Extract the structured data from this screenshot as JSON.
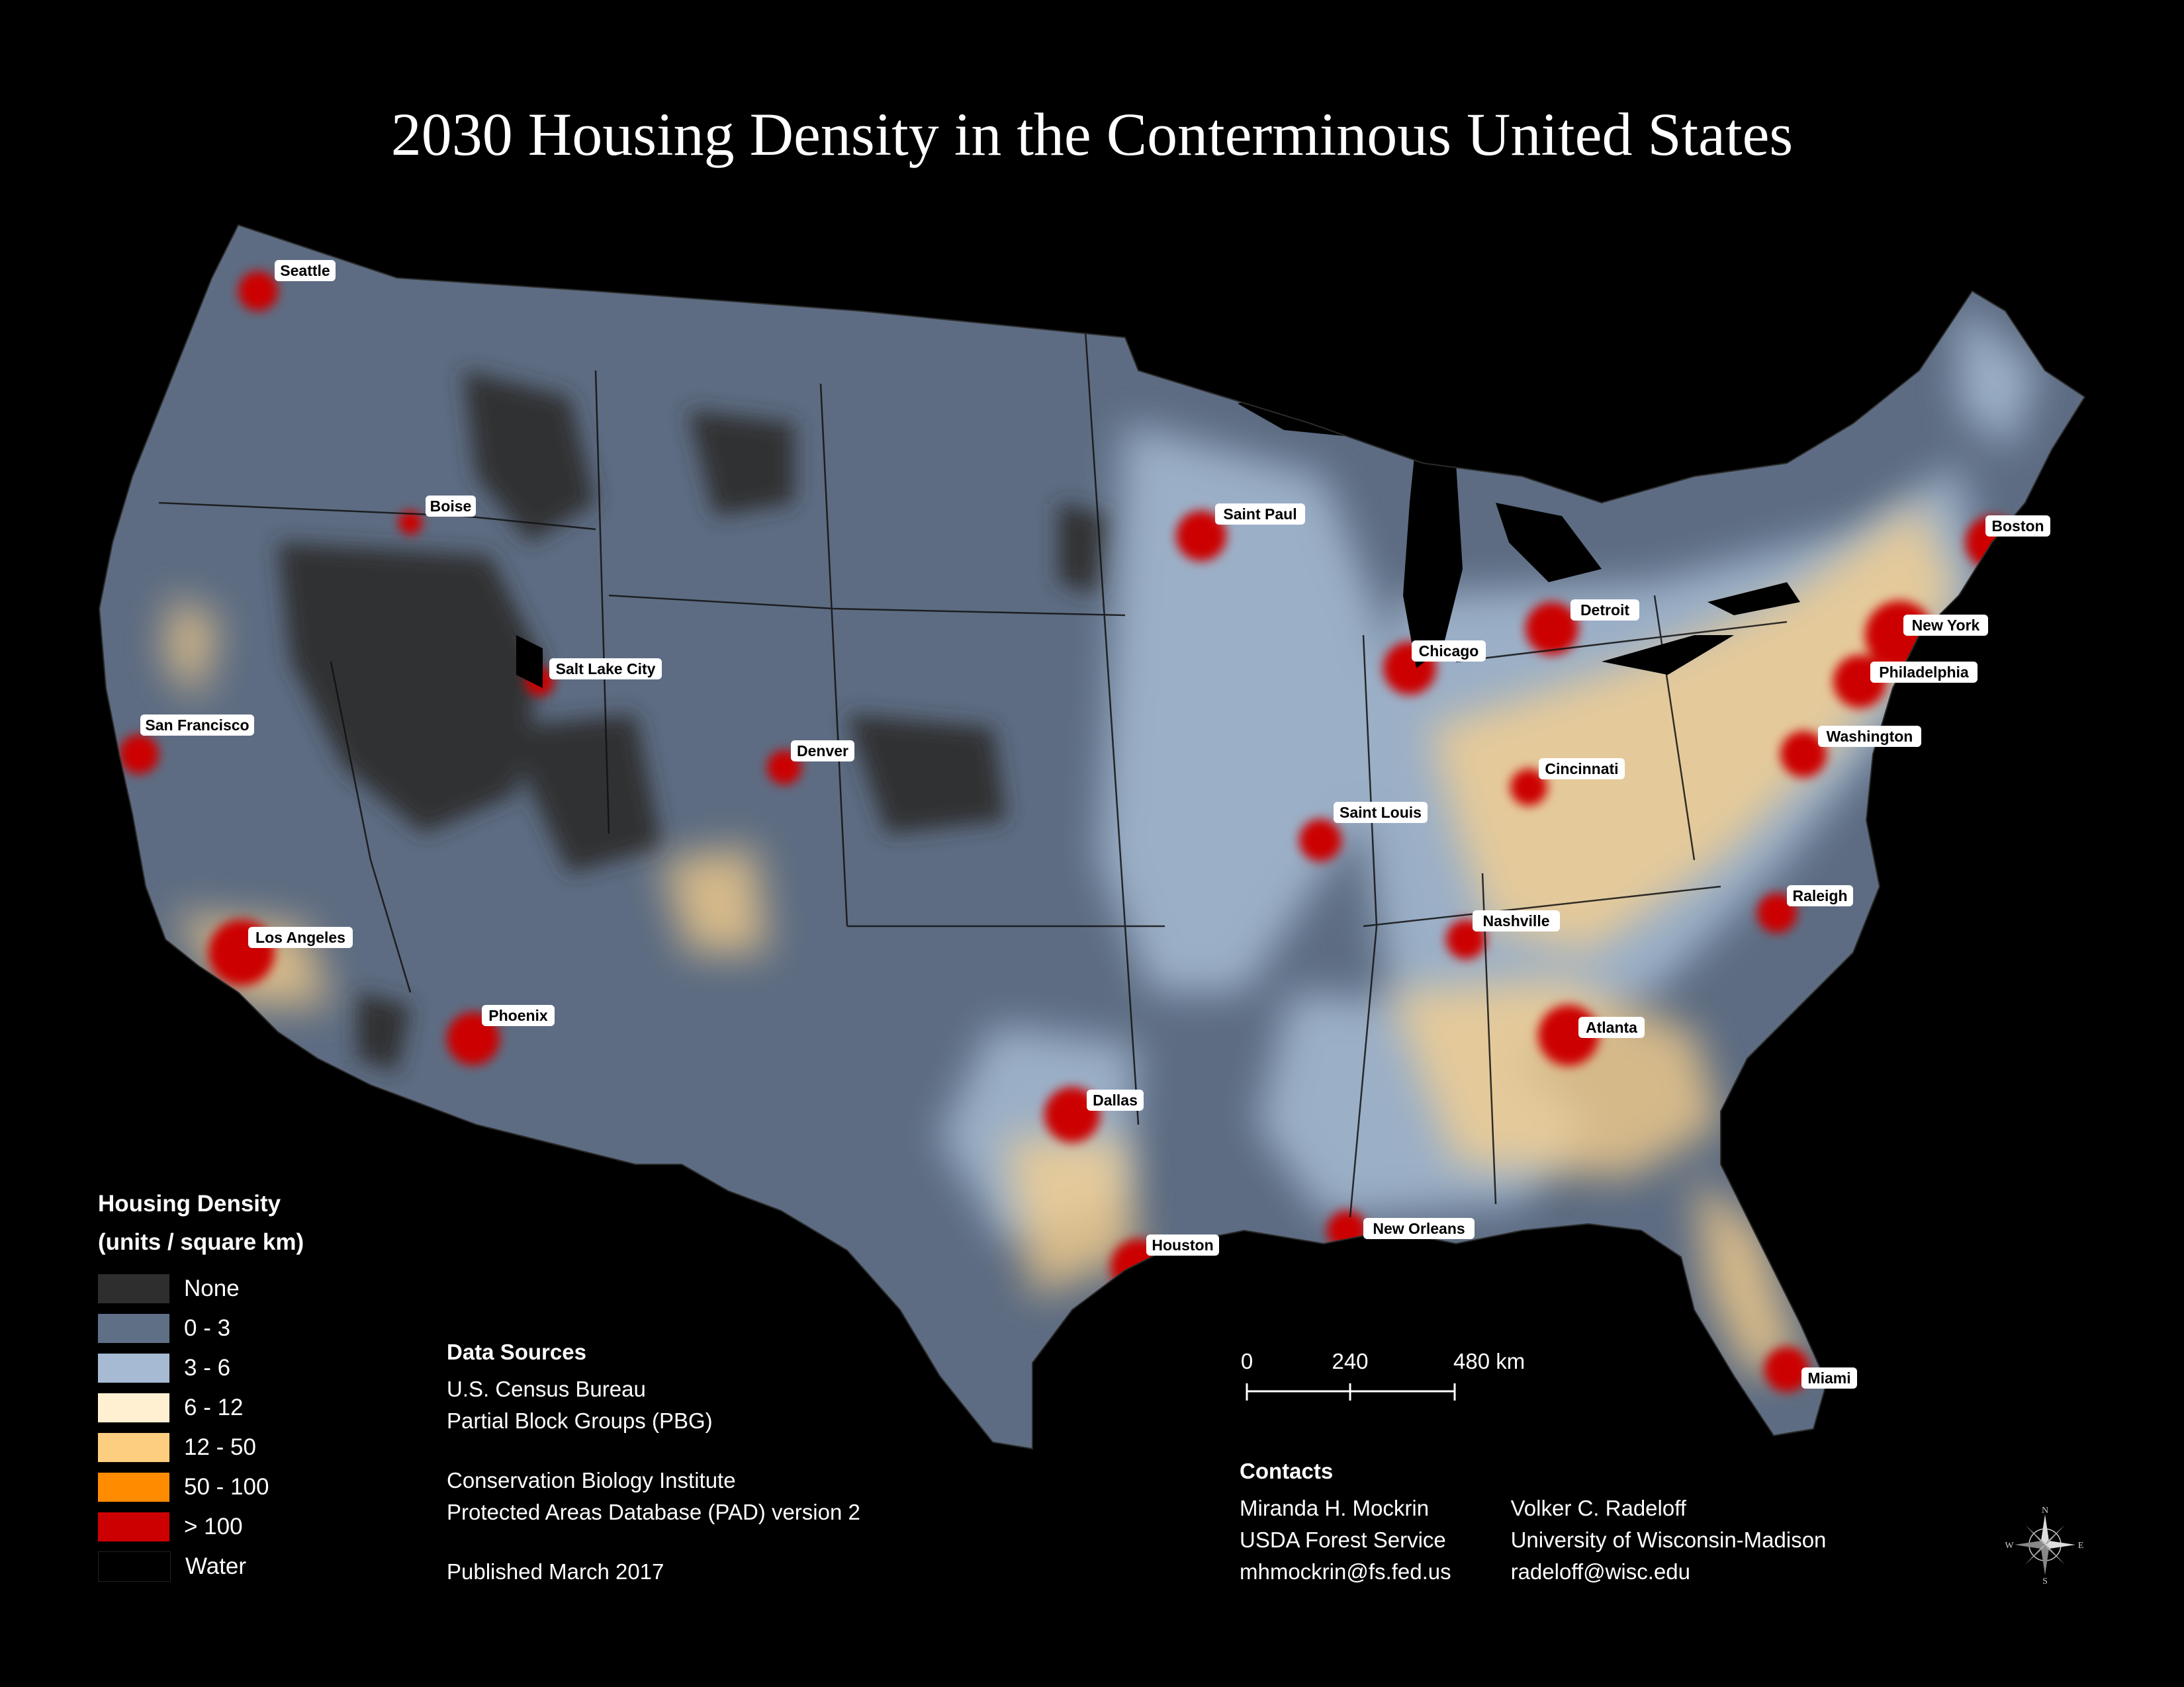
{
  "title": "2030 Housing Density in the Conterminous United States",
  "legend": {
    "title_line1": "Housing Density",
    "title_line2": "(units / square km)",
    "items": [
      {
        "label": "None",
        "color": "#2e2e2e"
      },
      {
        "label": "0 - 3",
        "color": "#5f6f86"
      },
      {
        "label": "3 - 6",
        "color": "#a6bbd3"
      },
      {
        "label": "6 - 12",
        "color": "#fff0d2"
      },
      {
        "label": "12 - 50",
        "color": "#fdcd80"
      },
      {
        "label": "50 - 100",
        "color": "#ff8c00"
      },
      {
        "label": "> 100",
        "color": "#cc0000"
      },
      {
        "label": "Water",
        "color": "#000000"
      }
    ]
  },
  "data_sources": {
    "heading": "Data Sources",
    "line1": "U.S. Census Bureau",
    "line2": "Partial Block Groups (PBG)",
    "line3": "Conservation Biology Institute",
    "line4": "Protected Areas Database (PAD) version 2",
    "published": "Published March 2017"
  },
  "scale_bar": {
    "ticks": [
      "0",
      "240",
      "480 km"
    ]
  },
  "contacts": {
    "heading": "Contacts",
    "person1": {
      "name": "Miranda H. Mockrin",
      "org": "USDA Forest Service",
      "email": "mhmockrin@fs.fed.us"
    },
    "person2": {
      "name": "Volker C. Radeloff",
      "org": "University of Wisconsin-Madison",
      "email": "radeloff@wisc.edu"
    }
  },
  "compass": {
    "n": "N",
    "s": "S",
    "e": "E",
    "w": "W"
  },
  "cities": [
    "Seattle",
    "Boise",
    "Salt Lake City",
    "San Francisco",
    "Denver",
    "Los Angeles",
    "Phoenix",
    "Saint Paul",
    "Chicago",
    "Detroit",
    "Boston",
    "New York",
    "Philadelphia",
    "Washington",
    "Cincinnati",
    "Saint Louis",
    "Nashville",
    "Raleigh",
    "Atlanta",
    "Dallas",
    "Houston",
    "New Orleans",
    "Miami"
  ]
}
